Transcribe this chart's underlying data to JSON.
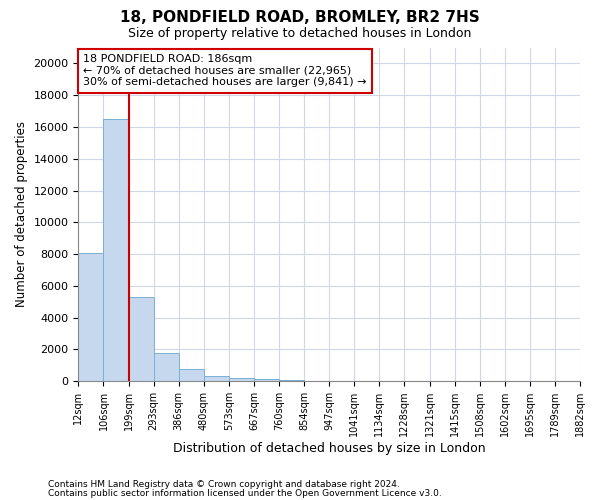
{
  "title1": "18, PONDFIELD ROAD, BROMLEY, BR2 7HS",
  "title2": "Size of property relative to detached houses in London",
  "xlabel": "Distribution of detached houses by size in London",
  "ylabel": "Number of detached properties",
  "bar_color": "#c5d8ee",
  "bar_edge_color": "#7aafd4",
  "tick_labels": [
    "12sqm",
    "106sqm",
    "199sqm",
    "293sqm",
    "386sqm",
    "480sqm",
    "573sqm",
    "667sqm",
    "760sqm",
    "854sqm",
    "947sqm",
    "1041sqm",
    "1134sqm",
    "1228sqm",
    "1321sqm",
    "1415sqm",
    "1508sqm",
    "1602sqm",
    "1695sqm",
    "1789sqm",
    "1882sqm"
  ],
  "bar_values": [
    8100,
    16500,
    5300,
    1800,
    750,
    300,
    200,
    150,
    100,
    0,
    0,
    0,
    0,
    0,
    0,
    0,
    0,
    0,
    0,
    0
  ],
  "ylim": [
    0,
    21000
  ],
  "yticks": [
    0,
    2000,
    4000,
    6000,
    8000,
    10000,
    12000,
    14000,
    16000,
    18000,
    20000
  ],
  "red_line_x": 2,
  "annotation_text": "18 PONDFIELD ROAD: 186sqm\n← 70% of detached houses are smaller (22,965)\n30% of semi-detached houses are larger (9,841) →",
  "annotation_box_color": "#ffffff",
  "annotation_box_edge": "#cc0000",
  "red_line_color": "#cc0000",
  "footnote1": "Contains HM Land Registry data © Crown copyright and database right 2024.",
  "footnote2": "Contains public sector information licensed under the Open Government Licence v3.0.",
  "bg_color": "#ffffff",
  "grid_color": "#d0d8e8"
}
